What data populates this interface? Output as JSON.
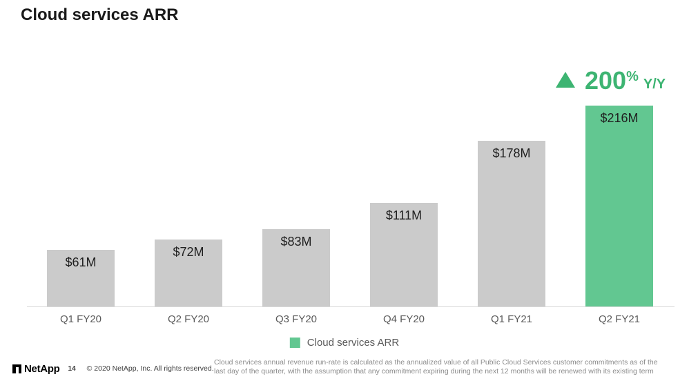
{
  "title": "Cloud services ARR",
  "annotation": {
    "icon": "up-triangle",
    "value": "200",
    "percent": "%",
    "suffix": "Y/Y"
  },
  "chart_data": {
    "type": "bar",
    "title": "Cloud services ARR",
    "categories": [
      "Q1 FY20",
      "Q2 FY20",
      "Q3 FY20",
      "Q4 FY20",
      "Q1 FY21",
      "Q2 FY21"
    ],
    "values": [
      61,
      72,
      83,
      111,
      178,
      216
    ],
    "labels": [
      "$61M",
      "$72M",
      "$83M",
      "$111M",
      "$178M",
      "$216M"
    ],
    "ylim": [
      0,
      230
    ],
    "grid": false,
    "legend": [
      "Cloud services ARR"
    ],
    "legend_position": "bottom",
    "highlight_index": 5,
    "annotation": "▲ 200% Y/Y"
  },
  "colors": {
    "bar_default": "#cbcbcb",
    "bar_highlight": "#62c791",
    "accent_green": "#3db472",
    "axis_line": "#d9d9d9",
    "axis_label": "#595959"
  },
  "legend": {
    "label": "Cloud services ARR"
  },
  "footer": {
    "brand": "NetApp",
    "logo_icon": "netapp-logo",
    "page_number": "14",
    "copyright": "© 2020 NetApp, Inc. All rights reserved.",
    "disclaimer": "Cloud services annual revenue run-rate is calculated as the annualized value of all Public Cloud Services customer commitments as of the last day of the quarter, with the assumption that any commitment expiring during the next 12 months will be renewed with its existing term"
  }
}
